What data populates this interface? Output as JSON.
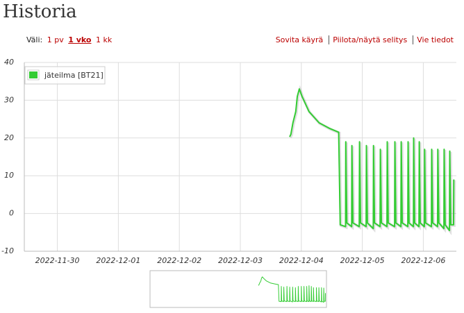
{
  "header": {
    "title": "Historia"
  },
  "range": {
    "label": "Väli:",
    "options": [
      "1 pv",
      "1 vko",
      "1 kk"
    ]
  },
  "actions": [
    "Sovita käyrä",
    "Piilota/näytä selitys",
    "Vie tiedot"
  ],
  "chart_data": {
    "type": "line",
    "x": [
      "2022-12-03T19:24",
      "2022-12-03T19:54",
      "2022-12-03T20:42",
      "2022-12-03T21:48",
      "2022-12-03T22:24",
      "2022-12-03T23:12",
      "2022-12-04T00:18",
      "2022-12-04T03:00",
      "2022-12-04T07:00",
      "2022-12-04T11:12",
      "2022-12-04T14:42",
      "2022-12-04T15:18",
      "2022-12-04T17:24",
      "2022-12-04T17:30",
      "2022-12-04T17:54",
      "2022-12-04T19:48",
      "2022-12-04T19:54",
      "2022-12-04T20:18",
      "2022-12-04T22:48",
      "2022-12-04T22:54",
      "2022-12-04T23:18",
      "2022-12-05T01:30",
      "2022-12-05T01:36",
      "2022-12-05T02:00",
      "2022-12-05T04:18",
      "2022-12-05T04:24",
      "2022-12-05T04:48",
      "2022-12-05T07:00",
      "2022-12-05T07:06",
      "2022-12-05T07:30",
      "2022-12-05T09:42",
      "2022-12-05T09:48",
      "2022-12-05T10:12",
      "2022-12-05T12:42",
      "2022-12-05T12:48",
      "2022-12-05T13:12",
      "2022-12-05T15:12",
      "2022-12-05T15:18",
      "2022-12-05T15:42",
      "2022-12-05T17:54",
      "2022-12-05T18:00",
      "2022-12-05T18:24",
      "2022-12-05T20:06",
      "2022-12-05T20:12",
      "2022-12-05T20:36",
      "2022-12-05T22:18",
      "2022-12-05T22:24",
      "2022-12-05T22:48",
      "2022-12-06T00:24",
      "2022-12-06T00:30",
      "2022-12-06T00:54",
      "2022-12-06T03:12",
      "2022-12-06T03:18",
      "2022-12-06T03:42",
      "2022-12-06T05:36",
      "2022-12-06T05:42",
      "2022-12-06T06:06",
      "2022-12-06T08:06",
      "2022-12-06T08:12",
      "2022-12-06T08:36",
      "2022-12-06T10:18",
      "2022-12-06T10:24",
      "2022-12-06T10:48",
      "2022-12-06T11:54",
      "2022-12-06T12:00"
    ],
    "series": [
      {
        "name": "jäteilma [BT21]",
        "color": "#33cc33",
        "values": [
          20.3,
          21,
          24,
          27,
          31,
          33,
          31,
          27,
          24,
          22.5,
          21.5,
          -3,
          -3.5,
          19,
          -2.5,
          -3.5,
          18,
          -2.5,
          -3.5,
          19,
          -2.5,
          -3.5,
          18,
          -2.5,
          -4,
          18,
          -2.5,
          -3.5,
          17,
          -2.5,
          -3.5,
          19,
          -2.5,
          -3.5,
          19,
          -2.5,
          -3.5,
          19,
          -2.5,
          -3.5,
          19,
          -2.5,
          -3.5,
          20,
          -2.5,
          -3.5,
          19,
          -2.5,
          -3.5,
          17,
          -2.5,
          -3.5,
          17,
          -2.5,
          -3.5,
          17,
          -2.5,
          -4,
          17,
          -3,
          -4.5,
          16.5,
          -3,
          -3,
          9
        ]
      }
    ],
    "xlim": [
      "2022-11-29T11:00",
      "2022-12-06T13:00"
    ],
    "xticks": [
      "2022-11-30",
      "2022-12-01",
      "2022-12-02",
      "2022-12-03",
      "2022-12-04",
      "2022-12-05",
      "2022-12-06"
    ],
    "ylim": [
      -10,
      40
    ],
    "yticks": [
      -10,
      0,
      10,
      20,
      30,
      40
    ],
    "grid": true,
    "legend": "upper left"
  }
}
